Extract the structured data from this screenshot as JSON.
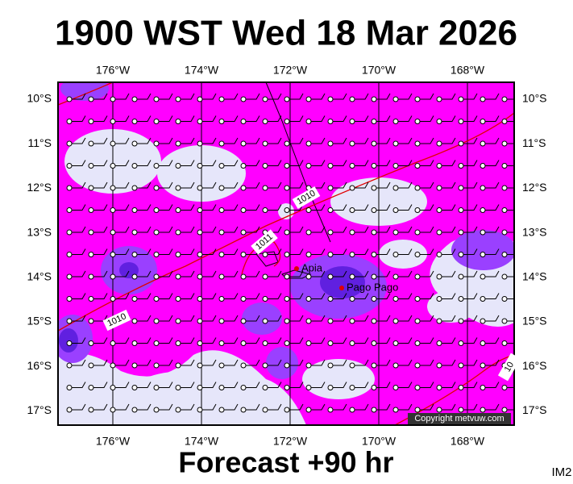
{
  "header": {
    "title": "1900 WST Wed 18 Mar 2026"
  },
  "map": {
    "lon_labels": [
      "176°W",
      "174°W",
      "172°W",
      "170°W",
      "168°W"
    ],
    "lat_labels": [
      "10°S",
      "11°S",
      "12°S",
      "13°S",
      "14°S",
      "15°S",
      "16°S",
      "17°S"
    ],
    "places": [
      "Apia",
      "Pago Pago"
    ],
    "contour_labels": [
      "1010",
      "1011",
      "1010",
      "10"
    ],
    "copyright": "Copyright metvuw.com"
  },
  "footer": {
    "forecast": "Forecast +90 hr",
    "code": "IM2"
  }
}
